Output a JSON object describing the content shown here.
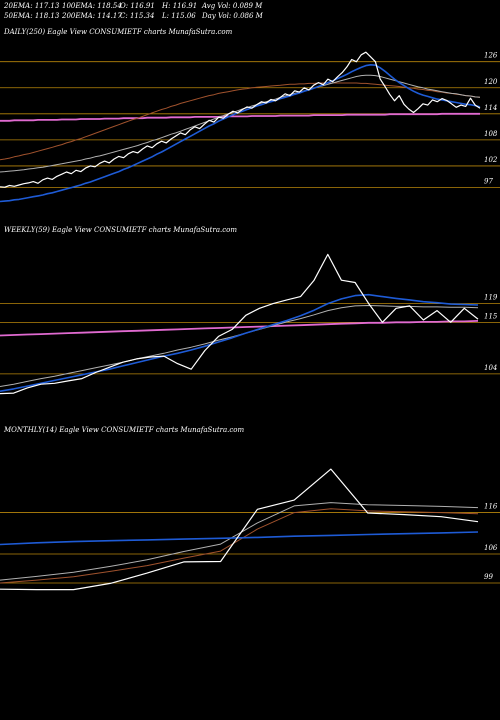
{
  "header": {
    "row1": [
      {
        "label": "20EMA: 117.13"
      },
      {
        "label": "100EMA: 118.54"
      },
      {
        "label": "O: 116.91"
      },
      {
        "label": "H: 116.91"
      },
      {
        "label": "Avg Vol: 0.089 M"
      }
    ],
    "row2": [
      {
        "label": "50EMA: 118.13"
      },
      {
        "label": "200EMA: 114.17"
      },
      {
        "label": "C: 115.34"
      },
      {
        "label": "L: 115.06"
      },
      {
        "label": "Day Vol: 0.086  M"
      }
    ]
  },
  "colors": {
    "background": "#000000",
    "price": "#ffffff",
    "ema_fast": "#1e5bd6",
    "ema_slow": "#b0b0b0",
    "ema_long": "#e06ad0",
    "ema_brown": "#a0522d",
    "level_line": "#b8860b"
  },
  "chart_data": [
    {
      "type": "line",
      "title": "DAILY(250) Eagle   View  CONSUMIETF charts MunafaSutra.com",
      "ylim": [
        93,
        131
      ],
      "levels": [
        "126",
        "120",
        "114",
        "108",
        "102",
        "97"
      ],
      "level_values": [
        126,
        120,
        114,
        108,
        102,
        97
      ],
      "series": [
        {
          "key": "price",
          "values": [
            97.2,
            97.1,
            97.5,
            97.3,
            97.6,
            97.9,
            98.1,
            98.4,
            98.0,
            98.8,
            99.2,
            98.9,
            99.6,
            100.1,
            100.6,
            100.2,
            101.0,
            100.7,
            101.5,
            102.0,
            101.8,
            102.6,
            103.1,
            102.7,
            103.6,
            104.2,
            103.9,
            104.8,
            105.3,
            105.0,
            105.9,
            106.6,
            106.2,
            107.1,
            107.7,
            107.3,
            108.2,
            108.9,
            109.6,
            109.2,
            110.3,
            111.0,
            110.6,
            111.6,
            112.5,
            112.1,
            113.2,
            113.0,
            113.9,
            114.6,
            114.2,
            115.0,
            115.6,
            115.3,
            116.1,
            116.8,
            116.5,
            117.3,
            117.0,
            117.8,
            118.6,
            118.2,
            119.3,
            119.0,
            120.0,
            119.5,
            120.6,
            121.2,
            120.7,
            122.0,
            121.4,
            122.5,
            123.5,
            124.8,
            126.5,
            126.0,
            127.6,
            128.2,
            127.1,
            126.0,
            122.0,
            120.3,
            118.5,
            117.0,
            118.2,
            116.2,
            115.1,
            114.3,
            115.2,
            116.3,
            116.0,
            117.2,
            116.8,
            117.5,
            117.1,
            116.3,
            115.5,
            116.0,
            115.7,
            117.6,
            116.0,
            115.3
          ]
        },
        {
          "key": "ema_fast",
          "values": [
            93.8,
            93.9,
            94.0,
            94.2,
            94.3,
            94.5,
            94.7,
            94.9,
            95.1,
            95.3,
            95.6,
            95.8,
            96.1,
            96.4,
            96.7,
            97.0,
            97.3,
            97.6,
            98.0,
            98.3,
            98.7,
            99.1,
            99.5,
            99.9,
            100.3,
            100.7,
            101.2,
            101.6,
            102.1,
            102.6,
            103.1,
            103.6,
            104.1,
            104.7,
            105.2,
            105.8,
            106.4,
            107.0,
            107.6,
            108.2,
            108.8,
            109.4,
            110.0,
            110.6,
            111.2,
            111.7,
            112.3,
            112.8,
            113.3,
            113.8,
            114.2,
            114.6,
            115.0,
            115.4,
            115.8,
            116.1,
            116.5,
            116.8,
            117.1,
            117.5,
            117.8,
            118.1,
            118.5,
            118.8,
            119.2,
            119.5,
            119.9,
            120.3,
            120.7,
            121.2,
            121.6,
            122.1,
            122.6,
            123.1,
            123.7,
            124.2,
            124.7,
            125.1,
            125.3,
            125.2,
            124.6,
            123.8,
            122.9,
            122.0,
            121.2,
            120.5,
            119.8,
            119.2,
            118.7,
            118.3,
            118.0,
            117.7,
            117.4,
            117.2,
            117.0,
            116.8,
            116.6,
            116.4,
            116.2,
            116.1,
            115.9,
            115.6
          ]
        },
        {
          "key": "ema_slow",
          "values": [
            100.6,
            100.7,
            100.8,
            100.9,
            101.0,
            101.1,
            101.3,
            101.4,
            101.6,
            101.7,
            101.9,
            102.1,
            102.3,
            102.5,
            102.7,
            102.9,
            103.1,
            103.3,
            103.6,
            103.8,
            104.1,
            104.3,
            104.6,
            104.9,
            105.2,
            105.5,
            105.8,
            106.1,
            106.4,
            106.7,
            107.1,
            107.4,
            107.8,
            108.1,
            108.5,
            108.9,
            109.3,
            109.6,
            110.0,
            110.4,
            110.8,
            111.2,
            111.6,
            112.0,
            112.4,
            112.8,
            113.2,
            113.6,
            114.0,
            114.3,
            114.7,
            115.1,
            115.4,
            115.8,
            116.1,
            116.5,
            116.8,
            117.1,
            117.4,
            117.8,
            118.1,
            118.4,
            118.7,
            119.0,
            119.3,
            119.6,
            119.9,
            120.2,
            120.5,
            120.8,
            121.1,
            121.4,
            121.7,
            122.0,
            122.3,
            122.6,
            122.8,
            122.9,
            122.9,
            122.8,
            122.6,
            122.3,
            122.0,
            121.7,
            121.4,
            121.1,
            120.8,
            120.5,
            120.2,
            120.0,
            119.7,
            119.5,
            119.3,
            119.1,
            118.9,
            118.7,
            118.6,
            118.4,
            118.2,
            118.1,
            117.9,
            117.8
          ]
        },
        {
          "key": "ema_brown",
          "values": [
            103.4,
            103.6,
            103.8,
            104.1,
            104.3,
            104.6,
            104.8,
            105.1,
            105.4,
            105.7,
            106.0,
            106.3,
            106.6,
            106.9,
            107.3,
            107.6,
            108.0,
            108.3,
            108.7,
            109.1,
            109.5,
            109.9,
            110.3,
            110.7,
            111.1,
            111.5,
            111.9,
            112.3,
            112.7,
            113.0,
            113.4,
            113.8,
            114.2,
            114.6,
            115.0,
            115.3,
            115.7,
            116.0,
            116.4,
            116.7,
            117.0,
            117.3,
            117.6,
            117.9,
            118.2,
            118.4,
            118.7,
            118.9,
            119.1,
            119.3,
            119.5,
            119.7,
            119.8,
            120.0,
            120.1,
            120.2,
            120.3,
            120.4,
            120.5,
            120.6,
            120.7,
            120.8,
            120.8,
            120.9,
            120.9,
            121.0,
            121.0,
            121.1,
            121.1,
            121.1,
            121.1,
            121.1,
            121.1,
            121.1,
            121.1,
            121.1,
            121.0,
            121.0,
            120.9,
            120.8,
            120.7,
            120.6,
            120.5,
            120.4,
            120.3,
            120.1,
            120.0,
            119.9,
            119.7,
            119.6,
            119.4,
            119.3,
            119.1,
            119.0,
            118.8,
            118.7,
            118.5,
            118.4,
            118.2,
            118.1,
            117.9,
            117.8
          ]
        },
        {
          "key": "ema_long",
          "values": [
            112.4,
            112.4,
            112.4,
            112.5,
            112.5,
            112.5,
            112.5,
            112.5,
            112.6,
            112.6,
            112.6,
            112.6,
            112.6,
            112.7,
            112.7,
            112.7,
            112.7,
            112.8,
            112.8,
            112.8,
            112.8,
            112.8,
            112.9,
            112.9,
            112.9,
            112.9,
            113.0,
            113.0,
            113.0,
            113.0,
            113.0,
            113.1,
            113.1,
            113.1,
            113.1,
            113.1,
            113.2,
            113.2,
            113.2,
            113.2,
            113.2,
            113.3,
            113.3,
            113.3,
            113.3,
            113.3,
            113.3,
            113.4,
            113.4,
            113.4,
            113.4,
            113.4,
            113.4,
            113.5,
            113.5,
            113.5,
            113.5,
            113.5,
            113.5,
            113.6,
            113.6,
            113.6,
            113.6,
            113.6,
            113.6,
            113.6,
            113.7,
            113.7,
            113.7,
            113.7,
            113.7,
            113.7,
            113.7,
            113.8,
            113.8,
            113.8,
            113.8,
            113.8,
            113.8,
            113.8,
            113.8,
            113.8,
            113.9,
            113.9,
            113.9,
            113.9,
            113.9,
            113.9,
            113.9,
            113.9,
            113.9,
            113.9,
            113.9,
            114.0,
            114.0,
            114.0,
            114.0,
            114.0,
            114.0,
            114.0,
            114.0,
            114.0
          ]
        }
      ]
    },
    {
      "type": "line",
      "title": "WEEKLY(59) Eagle   View  CONSUMIETF charts MunafaSutra.com",
      "ylim": [
        98,
        133
      ],
      "levels": [
        "119",
        "115",
        "104"
      ],
      "level_values": [
        119,
        115,
        104
      ],
      "series": [
        {
          "key": "price",
          "values": [
            99.8,
            99.9,
            101.0,
            101.8,
            102.0,
            102.5,
            103.0,
            104.3,
            105.4,
            106.5,
            107.2,
            107.6,
            107.8,
            106.2,
            105.0,
            109.0,
            112.0,
            113.5,
            116.5,
            118.0,
            119.0,
            119.8,
            120.5,
            124.0,
            129.5,
            124.0,
            123.5,
            119.0,
            115.0,
            118.0,
            118.5,
            115.5,
            117.5,
            115.0,
            118.0,
            115.7
          ]
        },
        {
          "key": "ema_fast",
          "values": [
            100.3,
            100.8,
            101.4,
            102.0,
            102.6,
            103.2,
            103.8,
            104.4,
            105.0,
            105.7,
            106.4,
            107.1,
            107.8,
            108.4,
            109.1,
            109.9,
            110.8,
            111.7,
            112.7,
            113.6,
            114.5,
            115.4,
            116.4,
            117.6,
            119.0,
            120.0,
            120.7,
            120.9,
            120.5,
            120.1,
            119.8,
            119.4,
            119.2,
            118.9,
            118.8,
            118.7
          ]
        },
        {
          "key": "ema_slow",
          "values": [
            101.3,
            101.8,
            102.4,
            103.0,
            103.5,
            104.1,
            104.7,
            105.3,
            105.9,
            106.5,
            107.2,
            107.8,
            108.4,
            109.1,
            109.7,
            110.4,
            111.2,
            111.9,
            112.7,
            113.5,
            114.3,
            115.1,
            115.8,
            116.6,
            117.5,
            118.1,
            118.5,
            118.6,
            118.5,
            118.4,
            118.4,
            118.3,
            118.3,
            118.2,
            118.2,
            118.1
          ]
        },
        {
          "key": "ema_long",
          "values": [
            112.2,
            112.3,
            112.4,
            112.5,
            112.6,
            112.7,
            112.8,
            112.9,
            113.0,
            113.1,
            113.2,
            113.3,
            113.4,
            113.5,
            113.6,
            113.7,
            113.8,
            113.9,
            114.0,
            114.1,
            114.2,
            114.3,
            114.4,
            114.5,
            114.6,
            114.7,
            114.8,
            114.9,
            114.9,
            115.0,
            115.0,
            115.1,
            115.1,
            115.2,
            115.2,
            115.3
          ]
        }
      ]
    },
    {
      "type": "line",
      "title": "MONTHLY(14) Eagle   View  CONSUMIETF charts MunafaSutra.com",
      "ylim": [
        92,
        134
      ],
      "levels": [
        "116",
        "106",
        "99"
      ],
      "level_values": [
        116,
        106,
        99
      ],
      "series": [
        {
          "key": "price",
          "values": [
            97.5,
            97.4,
            97.4,
            98.9,
            101.4,
            104.1,
            104.2,
            116.8,
            119.0,
            126.5,
            115.9,
            115.5,
            115.0,
            113.8
          ]
        },
        {
          "key": "ema_slow",
          "values": [
            99.7,
            100.6,
            101.6,
            103.0,
            104.6,
            106.6,
            108.4,
            113.5,
            117.6,
            118.4,
            117.9,
            117.7,
            117.5,
            117.2
          ]
        },
        {
          "key": "ema_brown",
          "values": [
            99.0,
            99.7,
            100.5,
            101.8,
            103.2,
            105.0,
            106.7,
            112.0,
            116.0,
            116.9,
            116.4,
            116.2,
            116.0,
            115.7
          ]
        },
        {
          "key": "ema_fast",
          "values": [
            108.3,
            108.7,
            109.0,
            109.2,
            109.4,
            109.6,
            109.8,
            110.0,
            110.3,
            110.5,
            110.7,
            110.9,
            111.1,
            111.3
          ]
        }
      ]
    }
  ]
}
